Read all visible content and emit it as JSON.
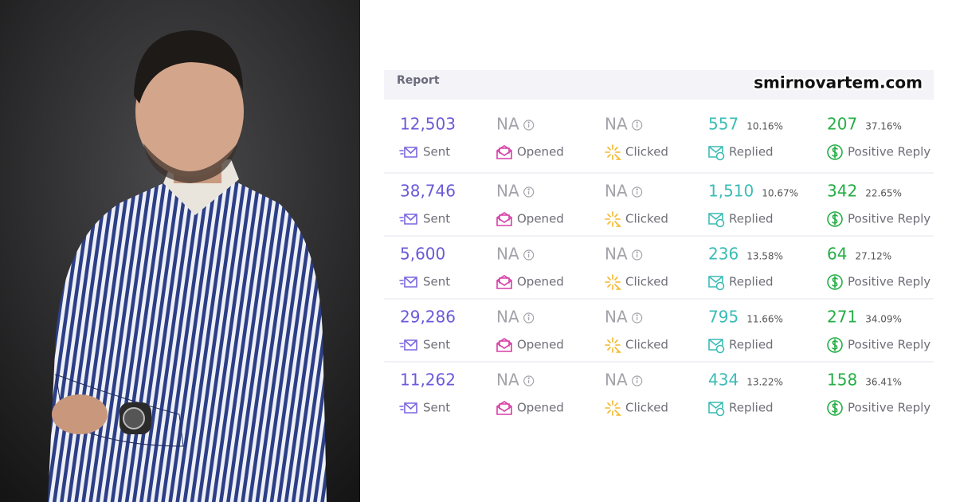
{
  "header": {
    "title": "Report",
    "watermark": "smirnovartem.com"
  },
  "table": {
    "columns": [
      "Sent",
      "Opened",
      "Clicked",
      "Replied",
      "Positive Reply"
    ],
    "rows": [
      {
        "sent": "12,503",
        "opened": "NA",
        "clicked": "NA",
        "replied": "557",
        "replied_rate": "10.16%",
        "positive": "207",
        "positive_rate": "37.16%"
      },
      {
        "sent": "38,746",
        "opened": "NA",
        "clicked": "NA",
        "replied": "1,510",
        "replied_rate": "10.67%",
        "positive": "342",
        "positive_rate": "22.65%"
      },
      {
        "sent": "5,600",
        "opened": "NA",
        "clicked": "NA",
        "replied": "236",
        "replied_rate": "13.58%",
        "positive": "64",
        "positive_rate": "27.12%"
      },
      {
        "sent": "29,286",
        "opened": "NA",
        "clicked": "NA",
        "replied": "795",
        "replied_rate": "11.66%",
        "positive": "271",
        "positive_rate": "34.09%"
      },
      {
        "sent": "11,262",
        "opened": "NA",
        "clicked": "NA",
        "replied": "434",
        "replied_rate": "13.22%",
        "positive": "158",
        "positive_rate": "36.41%"
      }
    ]
  }
}
